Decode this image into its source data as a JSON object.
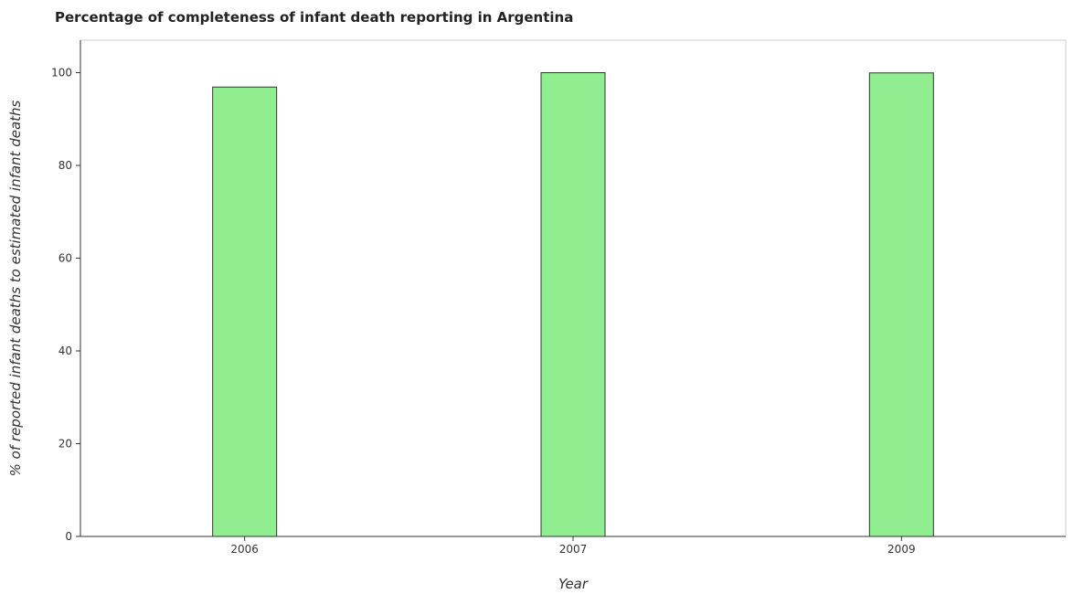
{
  "chart_data": {
    "type": "bar",
    "title": "Percentage of completeness of infant death reporting in Argentina",
    "xlabel": "Year",
    "ylabel": "% of reported infant deaths to estimated infant deaths",
    "categories": [
      "2006",
      "2007",
      "2009"
    ],
    "values": [
      96.9,
      100.0,
      99.95
    ],
    "ylim": [
      0,
      107
    ],
    "yticks": [
      0,
      20,
      40,
      60,
      80,
      100
    ],
    "grid": false,
    "legend": "none",
    "bar_color": "#90ee90",
    "bar_stroke": "#333333"
  }
}
